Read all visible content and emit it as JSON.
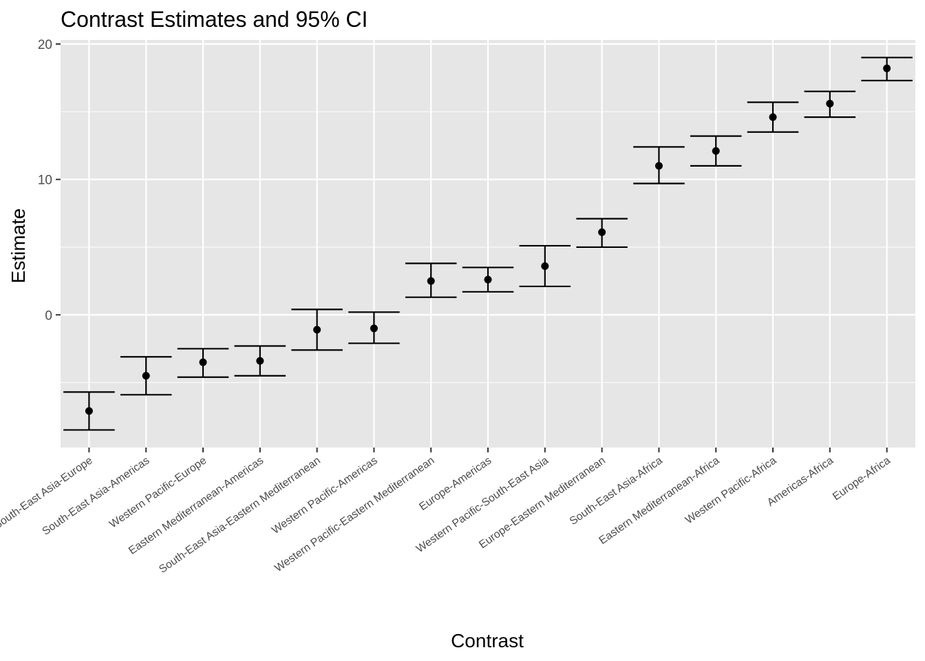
{
  "chart_data": {
    "type": "errorbar",
    "title": "Contrast Estimates and 95% CI",
    "xlabel": "Contrast",
    "ylabel": "Estimate",
    "ylim": [
      -9.8,
      20.3
    ],
    "yticks": [
      0,
      10,
      20
    ],
    "grid": true,
    "legend": "none",
    "colors": {
      "panel": "#e6e6e6",
      "grid": "#ffffff",
      "mark": "#000000",
      "tick_text": "#4d4d4d"
    },
    "categories": [
      "South-East Asia-Europe",
      "South-East Asia-Americas",
      "Western Pacific-Europe",
      "Eastern Mediterranean-Americas",
      "South-East Asia-Eastern Mediterranean",
      "Western Pacific-Americas",
      "Western Pacific-Eastern Mediterranean",
      "Europe-Americas",
      "Western Pacific-South-East Asia",
      "Europe-Eastern Mediterranean",
      "South-East Asia-Africa",
      "Eastern Mediterranean-Africa",
      "Western Pacific-Africa",
      "Americas-Africa",
      "Europe-Africa"
    ],
    "estimates": [
      -7.1,
      -4.5,
      -3.5,
      -3.4,
      -1.1,
      -1.0,
      2.5,
      2.6,
      3.6,
      6.1,
      11.0,
      12.1,
      14.6,
      15.6,
      18.2
    ],
    "lower": [
      -8.5,
      -5.9,
      -4.6,
      -4.5,
      -2.6,
      -2.1,
      1.3,
      1.7,
      2.1,
      5.0,
      9.7,
      11.0,
      13.5,
      14.6,
      17.3
    ],
    "upper": [
      -5.7,
      -3.1,
      -2.5,
      -2.3,
      0.4,
      0.2,
      3.8,
      3.5,
      5.1,
      7.1,
      12.4,
      13.2,
      15.7,
      16.5,
      19.0
    ]
  }
}
